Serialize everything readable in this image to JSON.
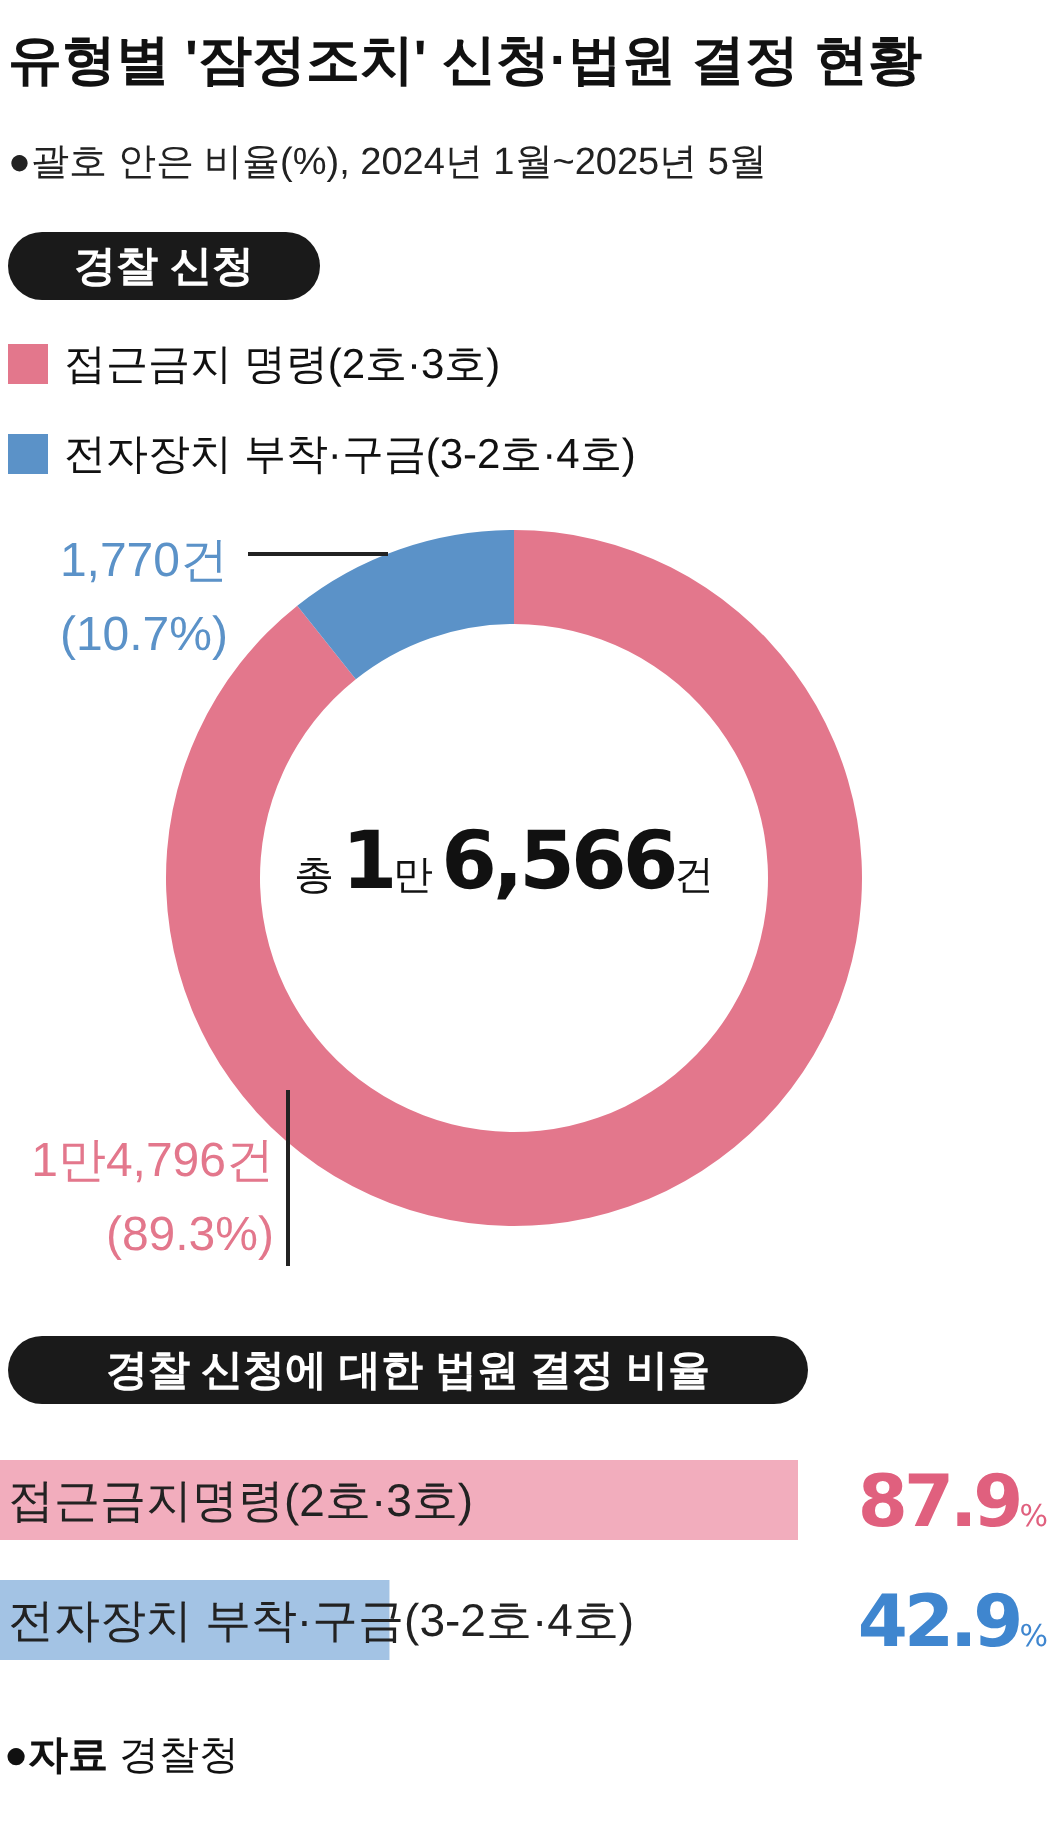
{
  "chart_data": [
    {
      "type": "donut",
      "title": "유형별 '잠정조치' 신청·법원 결정 현황",
      "subtitle": "●괄호 안은 비율(%), 2024년 1월~2025년 5월",
      "legend_title": "경찰 신청",
      "categories": [
        "접근금지 명령(2호·3호)",
        "전자장치 부착·구금(3-2호·4호)"
      ],
      "values": [
        89.3,
        10.7
      ],
      "colors": [
        "#e3778c",
        "#5b92c8"
      ],
      "value_labels": [
        "1만4,796건\n(89.3%)",
        "1,770건\n(10.7%)"
      ],
      "annotations": [
        "총1만6,566건"
      ],
      "legend": "top left"
    },
    {
      "type": "bar",
      "orientation": "horizontal",
      "title": "경찰 신청에 대한 법원 결정 비율",
      "categories": [
        "접근금지명령(2호·3호)",
        "전자장치 부착·구금(3-2호·4호)"
      ],
      "values": [
        87.9,
        42.9
      ],
      "colors": [
        "#f2adbd",
        "#a3c3e4"
      ],
      "value_labels": [
        "87.9%",
        "42.9%"
      ],
      "tick_labels": false,
      "annotations": [
        "●자료 경찰청"
      ]
    }
  ]
}
